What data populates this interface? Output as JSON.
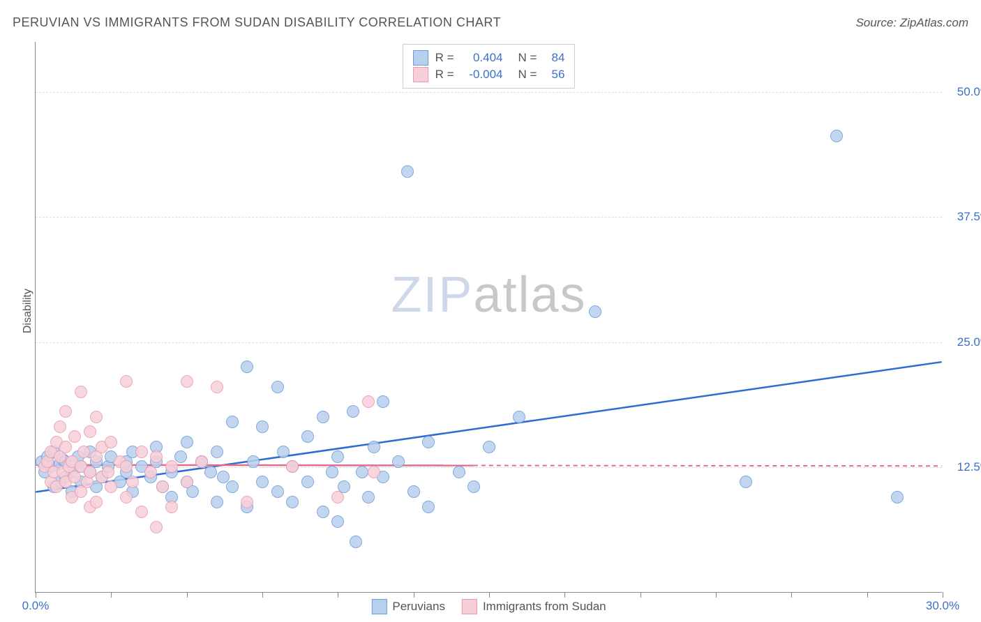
{
  "title": "PERUVIAN VS IMMIGRANTS FROM SUDAN DISABILITY CORRELATION CHART",
  "source_label": "Source: ZipAtlas.com",
  "ylabel": "Disability",
  "watermark_a": "ZIP",
  "watermark_b": "atlas",
  "chart": {
    "type": "scatter",
    "xlim": [
      0,
      30
    ],
    "ylim": [
      0,
      55
    ],
    "xtick_positions": [
      0,
      2.5,
      5,
      7.5,
      10,
      12.5,
      15,
      17.5,
      20,
      22.5,
      25,
      27.5,
      30
    ],
    "xtick_labels": {
      "0": "0.0%",
      "30": "30.0%"
    },
    "ytick_positions": [
      12.5,
      25,
      37.5,
      50
    ],
    "ytick_labels": {
      "12.5": "12.5%",
      "25": "25.0%",
      "37.5": "37.5%",
      "50": "50.0%"
    },
    "grid_color": "#dddddd",
    "background_color": "#ffffff",
    "marker_radius": 9,
    "series": [
      {
        "name": "Peruvians",
        "fill": "#b8d0ee",
        "stroke": "#6a9bd8",
        "R": "0.404",
        "N": "84",
        "trend": {
          "x1": 0,
          "y1": 10.0,
          "x2": 30,
          "y2": 23.0,
          "style": "solid",
          "color": "#2d6cd2",
          "dash_from_x": null
        },
        "points": [
          [
            0.2,
            13.0
          ],
          [
            0.3,
            12.0
          ],
          [
            0.4,
            13.5
          ],
          [
            0.5,
            12.5
          ],
          [
            0.6,
            10.5
          ],
          [
            0.6,
            14.0
          ],
          [
            0.8,
            11.0
          ],
          [
            0.8,
            12.8
          ],
          [
            0.9,
            13.2
          ],
          [
            1.0,
            11.5
          ],
          [
            1.0,
            13.0
          ],
          [
            1.2,
            10.0
          ],
          [
            1.2,
            12.0
          ],
          [
            1.4,
            13.5
          ],
          [
            1.5,
            11.0
          ],
          [
            1.5,
            12.5
          ],
          [
            1.8,
            12.0
          ],
          [
            1.8,
            14.0
          ],
          [
            2.0,
            10.5
          ],
          [
            2.0,
            13.0
          ],
          [
            2.2,
            11.5
          ],
          [
            2.4,
            12.5
          ],
          [
            2.5,
            13.5
          ],
          [
            2.8,
            11.0
          ],
          [
            3.0,
            12.0
          ],
          [
            3.0,
            13.0
          ],
          [
            3.2,
            14.0
          ],
          [
            3.2,
            10.0
          ],
          [
            3.5,
            12.5
          ],
          [
            3.8,
            11.5
          ],
          [
            4.0,
            13.0
          ],
          [
            4.0,
            14.5
          ],
          [
            4.2,
            10.5
          ],
          [
            4.5,
            12.0
          ],
          [
            4.5,
            9.5
          ],
          [
            4.8,
            13.5
          ],
          [
            5.0,
            11.0
          ],
          [
            5.0,
            15.0
          ],
          [
            5.2,
            10.0
          ],
          [
            5.5,
            13.0
          ],
          [
            5.8,
            12.0
          ],
          [
            6.0,
            9.0
          ],
          [
            6.0,
            14.0
          ],
          [
            6.2,
            11.5
          ],
          [
            6.5,
            10.5
          ],
          [
            6.5,
            17.0
          ],
          [
            7.0,
            8.5
          ],
          [
            7.0,
            22.5
          ],
          [
            7.2,
            13.0
          ],
          [
            7.5,
            11.0
          ],
          [
            7.5,
            16.5
          ],
          [
            8.0,
            10.0
          ],
          [
            8.0,
            20.5
          ],
          [
            8.2,
            14.0
          ],
          [
            8.5,
            9.0
          ],
          [
            8.5,
            12.5
          ],
          [
            9.0,
            15.5
          ],
          [
            9.0,
            11.0
          ],
          [
            9.5,
            8.0
          ],
          [
            9.5,
            17.5
          ],
          [
            9.8,
            12.0
          ],
          [
            10.0,
            7.0
          ],
          [
            10.0,
            13.5
          ],
          [
            10.2,
            10.5
          ],
          [
            10.5,
            18.0
          ],
          [
            10.6,
            5.0
          ],
          [
            10.8,
            12.0
          ],
          [
            11.0,
            9.5
          ],
          [
            11.2,
            14.5
          ],
          [
            11.5,
            11.5
          ],
          [
            11.5,
            19.0
          ],
          [
            12.0,
            13.0
          ],
          [
            12.3,
            42.0
          ],
          [
            12.5,
            10.0
          ],
          [
            13.0,
            8.5
          ],
          [
            13.0,
            15.0
          ],
          [
            14.0,
            12.0
          ],
          [
            14.5,
            10.5
          ],
          [
            15.0,
            14.5
          ],
          [
            16.0,
            17.5
          ],
          [
            18.5,
            28.0
          ],
          [
            23.5,
            11.0
          ],
          [
            26.5,
            45.5
          ],
          [
            28.5,
            9.5
          ]
        ]
      },
      {
        "name": "Immigants from Sudan",
        "label": "Immigrants from Sudan",
        "fill": "#f7cfd8",
        "stroke": "#e89bb0",
        "R": "-0.004",
        "N": "56",
        "trend": {
          "x1": 0,
          "y1": 12.7,
          "x2": 30,
          "y2": 12.6,
          "style": "solid_then_dash",
          "color": "#e56b8c",
          "dash_from_x": 14.5
        },
        "points": [
          [
            0.3,
            12.5
          ],
          [
            0.4,
            13.0
          ],
          [
            0.5,
            14.0
          ],
          [
            0.5,
            11.0
          ],
          [
            0.6,
            12.0
          ],
          [
            0.7,
            15.0
          ],
          [
            0.7,
            10.5
          ],
          [
            0.8,
            13.5
          ],
          [
            0.8,
            16.5
          ],
          [
            0.9,
            12.0
          ],
          [
            1.0,
            11.0
          ],
          [
            1.0,
            14.5
          ],
          [
            1.0,
            18.0
          ],
          [
            1.1,
            12.5
          ],
          [
            1.2,
            9.5
          ],
          [
            1.2,
            13.0
          ],
          [
            1.3,
            15.5
          ],
          [
            1.3,
            11.5
          ],
          [
            1.5,
            20.0
          ],
          [
            1.5,
            10.0
          ],
          [
            1.5,
            12.5
          ],
          [
            1.6,
            14.0
          ],
          [
            1.7,
            11.0
          ],
          [
            1.8,
            8.5
          ],
          [
            1.8,
            16.0
          ],
          [
            1.8,
            12.0
          ],
          [
            2.0,
            13.5
          ],
          [
            2.0,
            9.0
          ],
          [
            2.0,
            17.5
          ],
          [
            2.2,
            11.5
          ],
          [
            2.2,
            14.5
          ],
          [
            2.4,
            12.0
          ],
          [
            2.5,
            10.5
          ],
          [
            2.5,
            15.0
          ],
          [
            2.8,
            13.0
          ],
          [
            3.0,
            21.0
          ],
          [
            3.0,
            9.5
          ],
          [
            3.0,
            12.5
          ],
          [
            3.2,
            11.0
          ],
          [
            3.5,
            14.0
          ],
          [
            3.5,
            8.0
          ],
          [
            3.8,
            12.0
          ],
          [
            4.0,
            6.5
          ],
          [
            4.0,
            13.5
          ],
          [
            4.2,
            10.5
          ],
          [
            4.5,
            12.5
          ],
          [
            4.5,
            8.5
          ],
          [
            5.0,
            21.0
          ],
          [
            5.0,
            11.0
          ],
          [
            5.5,
            13.0
          ],
          [
            6.0,
            20.5
          ],
          [
            7.0,
            9.0
          ],
          [
            8.5,
            12.5
          ],
          [
            10.0,
            9.5
          ],
          [
            11.0,
            19.0
          ],
          [
            11.2,
            12.0
          ]
        ]
      }
    ],
    "legend_bottom": [
      {
        "swatch_fill": "#b8d0ee",
        "swatch_stroke": "#6a9bd8",
        "label": "Peruvians"
      },
      {
        "swatch_fill": "#f7cfd8",
        "swatch_stroke": "#e89bb0",
        "label": "Immigrants from Sudan"
      }
    ]
  }
}
